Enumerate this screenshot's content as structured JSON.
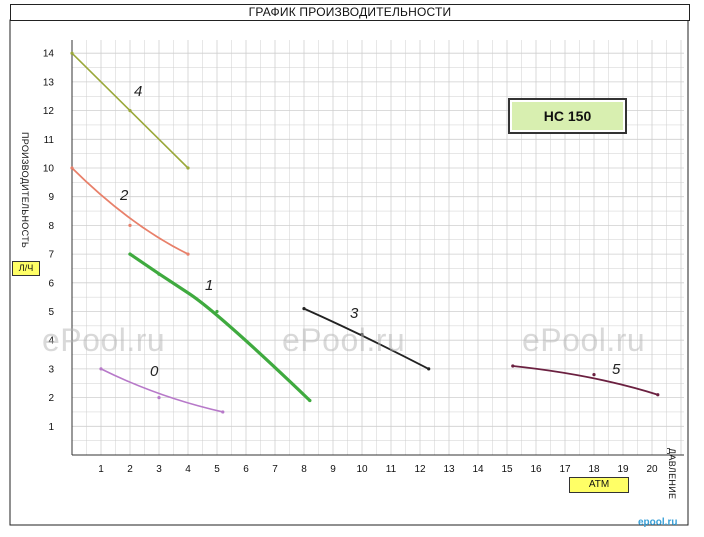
{
  "title": "ГРАФИК ПРОИЗВОДИТЕЛЬНОСТИ",
  "ylabel": "ПРОИЗВОДИТЕЛЬНОСТЬ",
  "yunit": "Л/Ч",
  "xlabel": "ДАВЛЕНИЕ",
  "xunit": "АТМ",
  "model": "НС 150",
  "watermarks": [
    "ePool.ru",
    "ePool.ru",
    "ePool.ru"
  ],
  "corner_logo": "epool.ru",
  "colors": {
    "curve_0": "#b779c9",
    "curve_1": "#3faa3f",
    "curve_2": "#e8806a",
    "curve_3": "#222222",
    "curve_4": "#9aa83a",
    "curve_5": "#6b2040",
    "grid": "#cfcfcf",
    "model_box": "#d8efb0",
    "unit_box": "#ffff66"
  },
  "chart_data": {
    "type": "line",
    "xlabel": "ДАВЛЕНИЕ",
    "ylabel": "ПРОИЗВОДИТЕЛЬНОСТЬ",
    "xlim": [
      0,
      21
    ],
    "ylim": [
      0,
      14
    ],
    "x_ticks": [
      "1",
      "2",
      "3",
      "4",
      "5",
      "6",
      "7",
      "8",
      "9",
      "10",
      "11",
      "12",
      "13",
      "14",
      "15",
      "16",
      "17",
      "18",
      "19",
      "20"
    ],
    "y_ticks": [
      "1",
      "2",
      "3",
      "4",
      "5",
      "6",
      "7",
      "8",
      "9",
      "10",
      "11",
      "12",
      "13",
      "14"
    ],
    "grid": true,
    "series": [
      {
        "name": "0",
        "x": [
          1,
          3,
          5.2
        ],
        "y": [
          3.0,
          2.0,
          1.5
        ]
      },
      {
        "name": "1",
        "x": [
          2,
          3,
          5,
          8.2
        ],
        "y": [
          7.0,
          6.3,
          5.0,
          1.9
        ]
      },
      {
        "name": "2",
        "x": [
          0,
          2,
          4
        ],
        "y": [
          10.0,
          8.0,
          7.0
        ]
      },
      {
        "name": "3",
        "x": [
          8,
          10,
          12.3
        ],
        "y": [
          5.1,
          4.2,
          3.0
        ]
      },
      {
        "name": "4",
        "x": [
          0,
          2,
          4
        ],
        "y": [
          14.0,
          12.0,
          10.0
        ]
      },
      {
        "name": "5",
        "x": [
          15.2,
          18,
          20.2
        ],
        "y": [
          3.1,
          2.8,
          2.1
        ]
      }
    ]
  }
}
